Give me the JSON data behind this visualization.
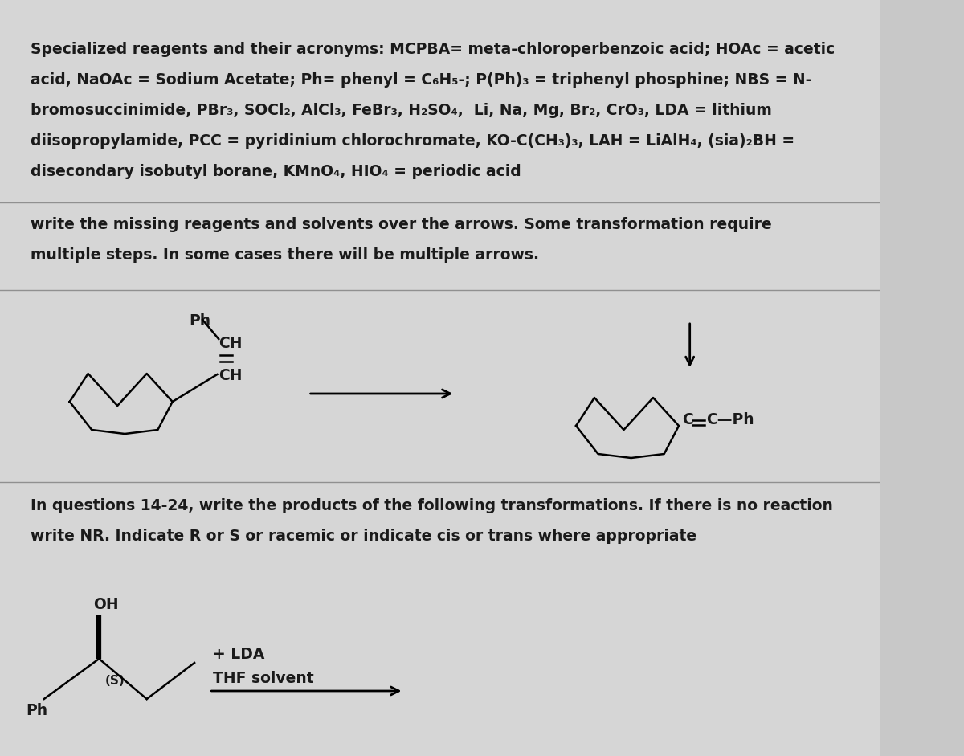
{
  "bg_color": "#c8c8c8",
  "text_bg_color": "#e8e8e8",
  "text_color": "#1a1a1a",
  "font_size_main": 13.5,
  "font_size_small": 10,
  "line1": "Specialized reagents and their acronyms: MCPBA= meta-chloroperbenzoic acid; HOAc = acetic",
  "line2": "acid, NaOAc = Sodium Acetate; Ph= phenyl = C₆H₅-; P(Ph)₃ = triphenyl phosphine; NBS = N-",
  "line3": "bromosuccinimide, PBr₃, SOCl₂, AlCl₃, FeBr₃, H₂SO₄,  Li, Na, Mg, Br₂, CrO₃, LDA = lithium",
  "line4": "diisopropylamide, PCC = pyridinium chlorochromate, KO-C(CH₃)₃, LAH = LiAlH₄, (sia)₂BH =",
  "line5": "disecondary isobutyl borane, KMnO₄, HIO₄ = periodic acid",
  "line6": "write the missing reagents and solvents over the arrows. Some transformation require",
  "line7": "multiple steps. In some cases there will be multiple arrows.",
  "line8": "In questions 14-24, write the products of the following transformations. If there is no reaction",
  "line9": "write NR. Indicate R or S or racemic or indicate cis or trans where appropriate"
}
